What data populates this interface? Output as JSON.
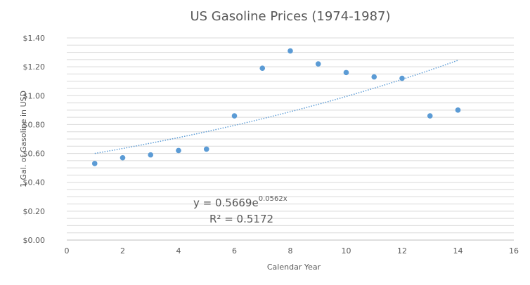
{
  "chart_data": {
    "type": "scatter",
    "title": "US Gasoline Prices (1974-1987)",
    "xlabel": "Calendar Year",
    "ylabel": "1 Gal. of Gasoline in USD",
    "xlim": [
      0,
      16
    ],
    "ylim": [
      0,
      1.4
    ],
    "x_ticks": [
      0,
      2,
      4,
      6,
      8,
      10,
      12,
      14,
      16
    ],
    "x_tick_labels": [
      "0",
      "2",
      "4",
      "6",
      "8",
      "10",
      "12",
      "14",
      "16"
    ],
    "y_ticks": [
      0,
      0.2,
      0.4,
      0.6,
      0.8,
      1.0,
      1.2,
      1.4
    ],
    "y_tick_labels": [
      "$0.00",
      "$0.20",
      "$0.40",
      "$0.60",
      "$0.80",
      "$1.00",
      "$1.20",
      "$1.40"
    ],
    "grid": true,
    "legend": "none",
    "series": [
      {
        "x": [
          1,
          2,
          3,
          4,
          5,
          6,
          7,
          8,
          9,
          10,
          11,
          12,
          13,
          14
        ],
        "y": [
          0.53,
          0.57,
          0.59,
          0.62,
          0.63,
          0.86,
          1.19,
          1.31,
          1.22,
          1.16,
          1.13,
          1.12,
          0.86,
          0.9
        ],
        "color": "#5b9bd5"
      }
    ],
    "trendline": {
      "type": "exponential",
      "a": 0.5669,
      "b": 0.0562,
      "x_range": [
        1,
        14
      ],
      "color": "#5b9bd5",
      "style": "dotted"
    },
    "annotations": {
      "equation_base": "y = 0.5669e",
      "equation_exponent": "0.0562x",
      "r_squared": "R² = 0.5172"
    }
  }
}
